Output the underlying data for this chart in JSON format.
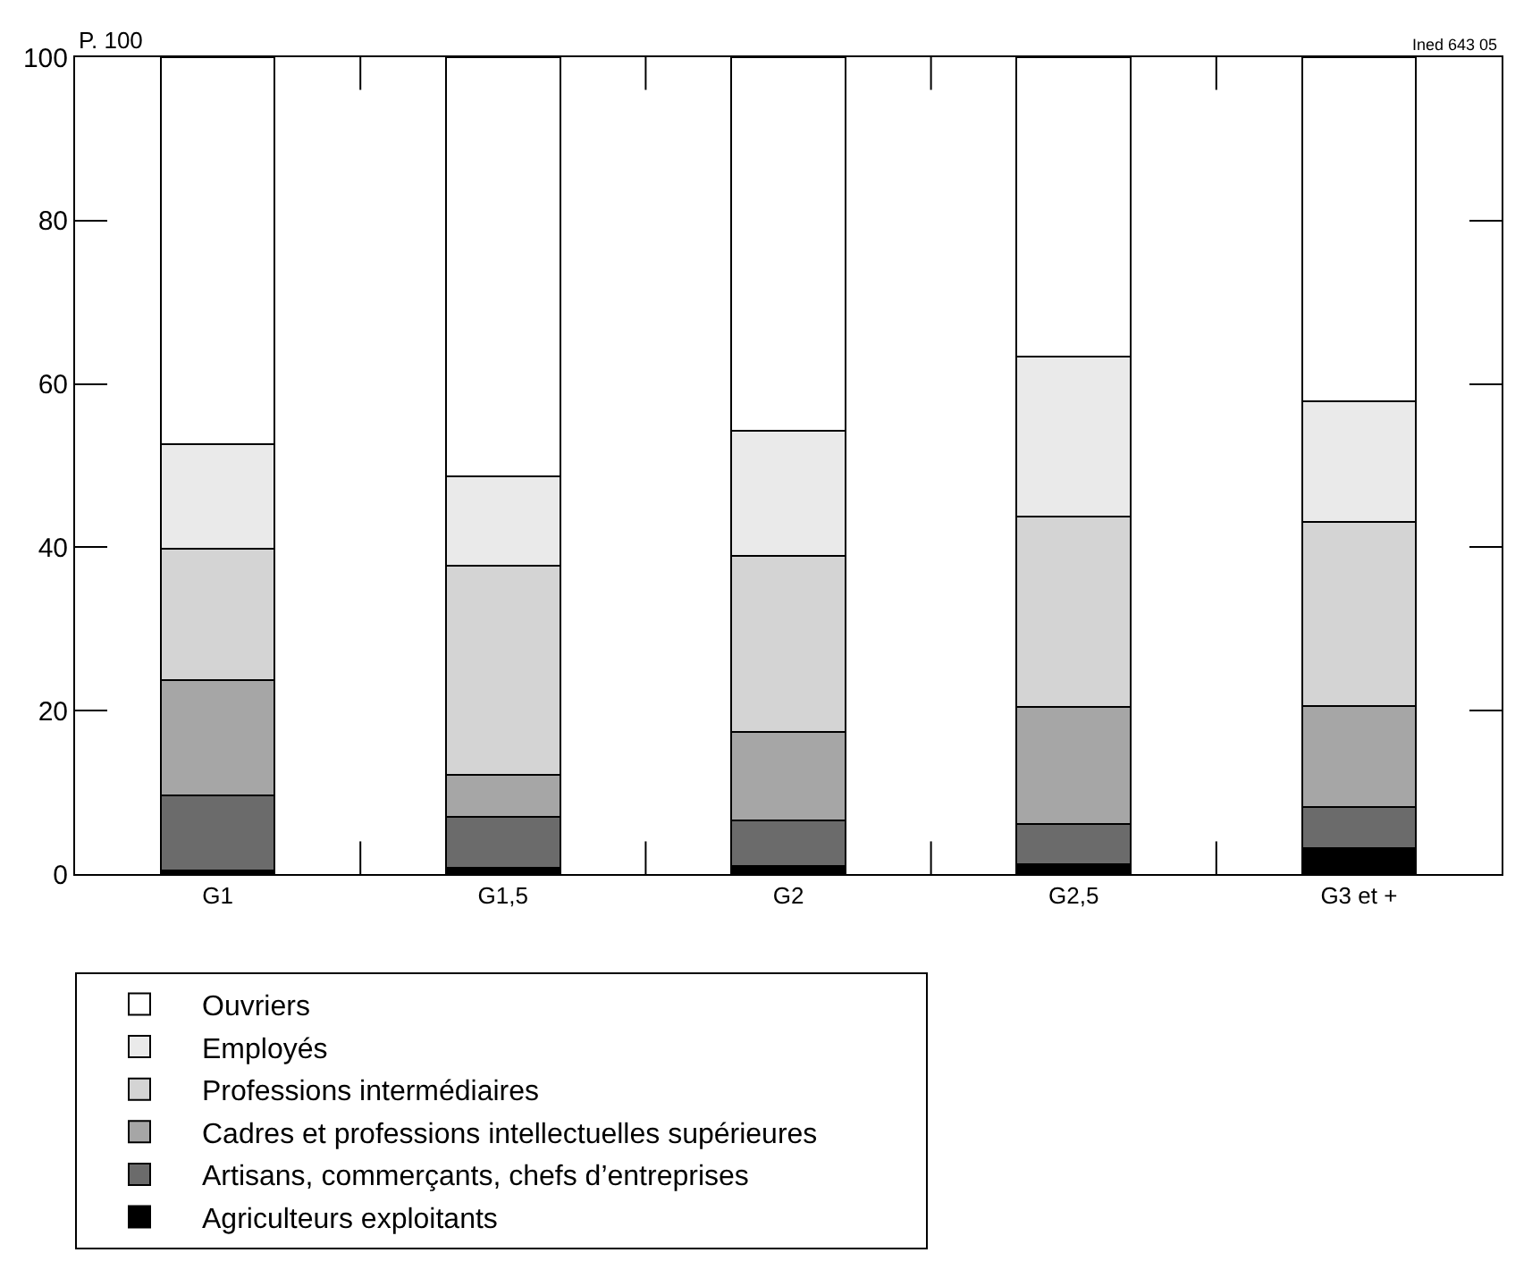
{
  "chart_data": {
    "type": "bar",
    "stacked": true,
    "ylabel": "P. 100",
    "annotations": [
      "Ined 643 05"
    ],
    "categories": [
      "G1",
      "G1,5",
      "G2",
      "G2,5",
      "G3 et +"
    ],
    "series": [
      {
        "name": "Agriculteurs exploitants",
        "color": "#000000",
        "values": [
          0.4,
          0.8,
          1.0,
          1.2,
          3.2
        ]
      },
      {
        "name": "Artisans, commerçants, chefs d’entreprises",
        "color": "#6b6b6b",
        "values": [
          9.2,
          6.2,
          5.6,
          4.9,
          5.0
        ]
      },
      {
        "name": "Cadres et professions intellectuelles supérieures",
        "color": "#a6a6a6",
        "values": [
          14.1,
          5.1,
          10.8,
          14.4,
          12.4
        ]
      },
      {
        "name": "Professions intermédiaires",
        "color": "#d4d4d4",
        "values": [
          16.1,
          25.7,
          21.6,
          23.3,
          22.5
        ]
      },
      {
        "name": "Employés",
        "color": "#eaeaea",
        "values": [
          12.8,
          10.9,
          15.3,
          19.5,
          14.8
        ]
      },
      {
        "name": "Ouvriers",
        "color": "#ffffff",
        "values": [
          47.4,
          51.3,
          45.7,
          36.7,
          42.1
        ]
      }
    ],
    "ylim": [
      0,
      100
    ],
    "yticks": [
      0,
      20,
      40,
      60,
      80,
      100
    ],
    "grid": false,
    "legend": "bottom"
  }
}
